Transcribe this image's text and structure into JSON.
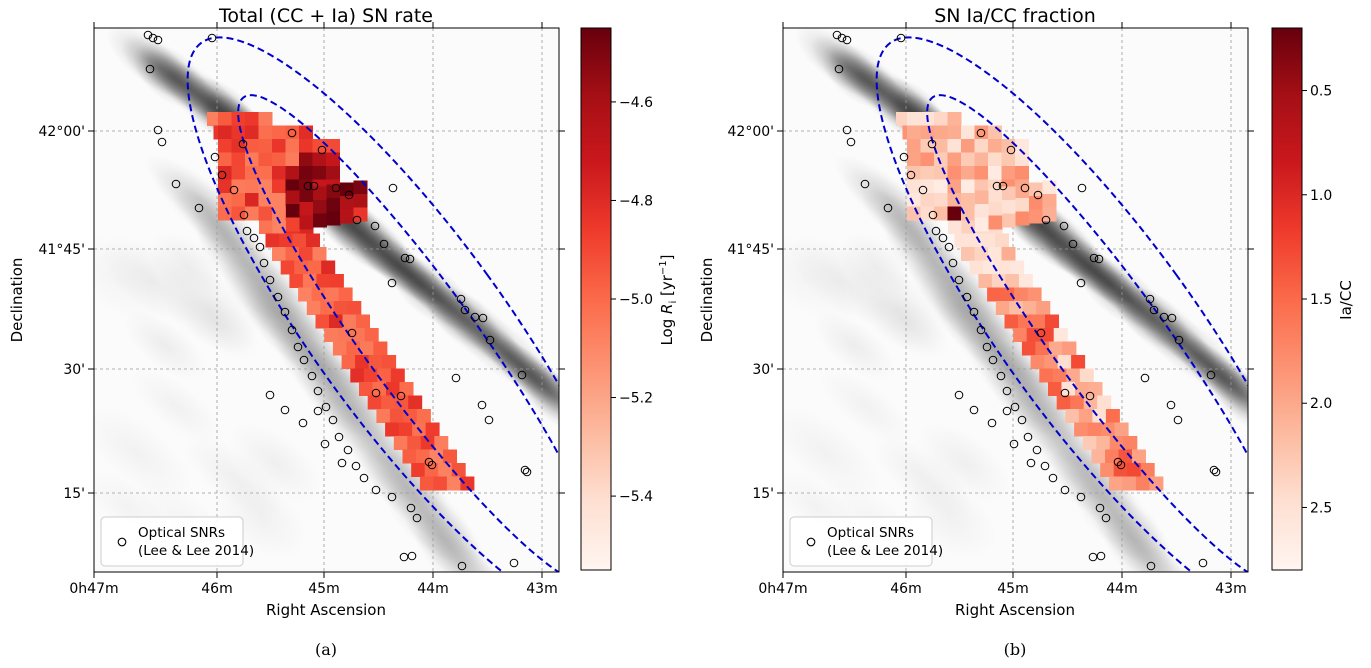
{
  "figure": {
    "panels": [
      {
        "id": "a",
        "title": "Total (CC + Ia) SN rate",
        "xlabel": "Right Ascension",
        "ylabel": "Declination",
        "x_ticks": [
          "0h47m",
          "46m",
          "45m",
          "44m",
          "43m"
        ],
        "y_ticks": [
          "42°00'",
          "41°45'",
          "30'",
          "15'"
        ],
        "colorbar": {
          "label": "Log R_i [yr^-1]",
          "label_main": "Log ",
          "label_sym": "R",
          "label_sub": "i",
          "label_unit": " [yr",
          "label_sup": "−1",
          "label_end": "]",
          "ticks": [
            "−4.6",
            "−4.8",
            "−5.0",
            "−5.2",
            "−5.4"
          ],
          "cmap": "Reds"
        },
        "legend": {
          "label_line1": "Optical SNRs",
          "label_line2": "(Lee & Lee 2014)"
        },
        "caption": "(a)"
      },
      {
        "id": "b",
        "title": "SN Ia/CC fraction",
        "xlabel": "Right Ascension",
        "ylabel": "Declination",
        "x_ticks": [
          "0h47m",
          "46m",
          "45m",
          "44m",
          "43m"
        ],
        "y_ticks": [
          "42°00'",
          "41°45'",
          "30'",
          "15'"
        ],
        "colorbar": {
          "label": "Ia/CC",
          "ticks": [
            "2.5",
            "2.0",
            "1.5",
            "1.0",
            "0.5"
          ],
          "cmap": "Reds"
        },
        "legend": {
          "label_line1": "Optical SNRs",
          "label_line2": "(Lee & Lee 2014)"
        },
        "caption": "(b)"
      }
    ]
  },
  "chart_data": [
    {
      "type": "heatmap",
      "title": "Total (CC + Ia) SN rate",
      "xlabel": "Right Ascension",
      "ylabel": "Declination",
      "x_ticks": [
        "0h47m",
        "46m",
        "45m",
        "44m",
        "43m"
      ],
      "y_ticks": [
        "42°00'",
        "41°45'",
        "30'",
        "15'"
      ],
      "colorbar": {
        "label": "Log R_i [yr^-1]",
        "range": [
          -5.55,
          -4.45
        ],
        "ticks": [
          -4.6,
          -4.8,
          -5.0,
          -5.2,
          -5.4
        ],
        "cmap": "Reds"
      },
      "overlay_series": [
        {
          "name": "Optical SNRs (Lee & Lee 2014)",
          "marker": "open circle"
        }
      ],
      "grid": true,
      "legend_position": "lower-left"
    },
    {
      "type": "heatmap",
      "title": "SN Ia/CC fraction",
      "xlabel": "Right Ascension",
      "ylabel": "Declination",
      "x_ticks": [
        "0h47m",
        "46m",
        "45m",
        "44m",
        "43m"
      ],
      "y_ticks": [
        "42°00'",
        "41°45'",
        "30'",
        "15'"
      ],
      "colorbar": {
        "label": "Ia/CC",
        "range": [
          0.2,
          2.8
        ],
        "ticks": [
          0.5,
          1.0,
          1.5,
          2.0,
          2.5
        ],
        "cmap": "Reds"
      },
      "overlay_series": [
        {
          "name": "Optical SNRs (Lee & Lee 2014)",
          "marker": "open circle"
        }
      ],
      "grid": true,
      "legend_position": "lower-left"
    }
  ],
  "colors": {
    "ellipse": "#0000cc",
    "grid": "#9a9a9a",
    "background_gray": "#8a8a8a",
    "reds": [
      "#fff5f0",
      "#fee0d2",
      "#fcbba1",
      "#fc9272",
      "#fb6a4a",
      "#ef3b2c",
      "#cb181d",
      "#a50f15",
      "#67000d"
    ]
  }
}
